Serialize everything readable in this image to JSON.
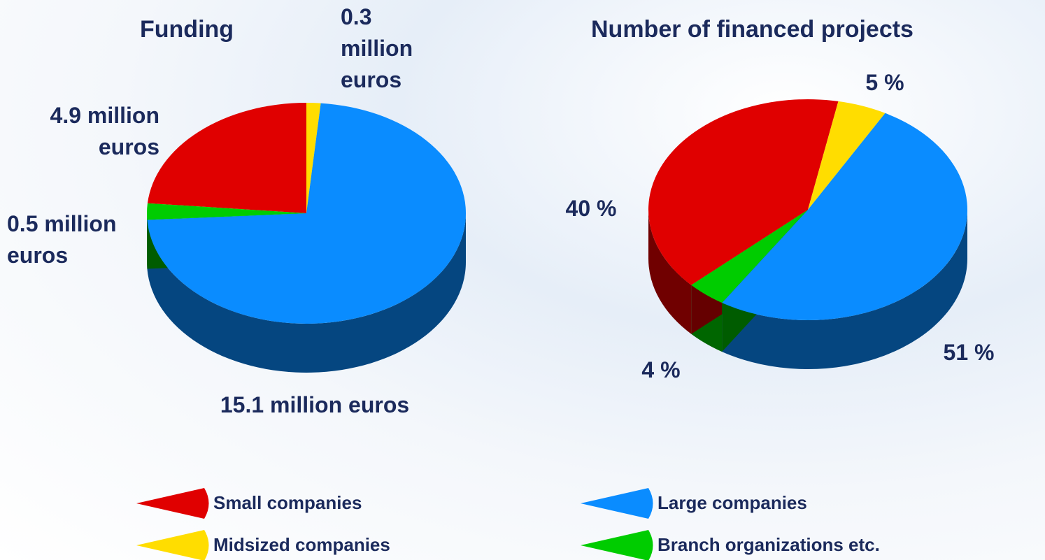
{
  "chart_data": [
    {
      "type": "pie",
      "title": "Funding",
      "values": [
        4.9,
        0.3,
        15.1,
        0.5
      ],
      "value_labels": [
        "4.9 million euros",
        "0.3 million euros",
        "15.1 million euros",
        "0.5 million euros"
      ],
      "colors": [
        "#e00000",
        "#ffdd00",
        "#0a8cff",
        "#00cc00"
      ]
    },
    {
      "type": "pie",
      "title": "Number of financed projects",
      "values": [
        40,
        5,
        51,
        4
      ],
      "value_labels": [
        "40 %",
        "5 %",
        "51 %",
        "4 %"
      ],
      "colors": [
        "#e00000",
        "#ffdd00",
        "#0a8cff",
        "#00cc00"
      ]
    }
  ],
  "legend": {
    "labels": [
      "Small companies",
      "Midsized companies",
      "Large companies",
      "Branch organizations etc."
    ],
    "colors": [
      "#e00000",
      "#ffdd00",
      "#0a8cff",
      "#00cc00"
    ]
  }
}
